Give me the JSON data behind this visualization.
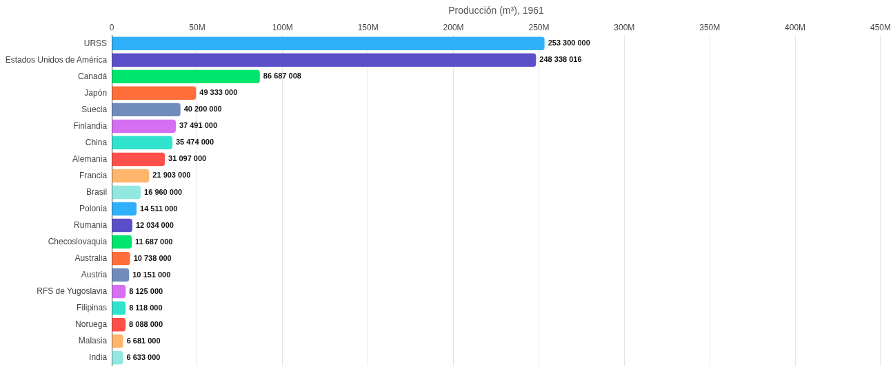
{
  "chart_data": {
    "type": "bar",
    "orientation": "horizontal",
    "xlabel": "Producción (m³), 1961",
    "categories": [
      "URSS",
      "Estados Unidos de América",
      "Canadá",
      "Japón",
      "Suecia",
      "Finlandia",
      "China",
      "Alemania",
      "Francia",
      "Brasil",
      "Polonia",
      "Rumania",
      "Checoslovaquia",
      "Australia",
      "Austria",
      "RFS de Yugoslavia",
      "Filipinas",
      "Noruega",
      "Malasia",
      "India"
    ],
    "values": [
      253300000,
      248338016,
      86687008,
      49333000,
      40200000,
      37491000,
      35474000,
      31097000,
      21903000,
      16960000,
      14511000,
      12034000,
      11687000,
      10738000,
      10151000,
      8125000,
      8118000,
      8088000,
      6681000,
      6633000
    ],
    "value_labels": [
      "253 300 000",
      "248 338 016",
      "86 687 008",
      "49 333 000",
      "40 200 000",
      "37 491 000",
      "35 474 000",
      "31 097 000",
      "21 903 000",
      "16 960 000",
      "14 511 000",
      "12 034 000",
      "11 687 000",
      "10 738 000",
      "10 151 000",
      "8 125 000",
      "8 118 000",
      "8 088 000",
      "6 681 000",
      "6 633 000"
    ],
    "colors": [
      "#2eb0fa",
      "#5a4fc9",
      "#00e56e",
      "#ff6e3a",
      "#6f8cbd",
      "#d66ff2",
      "#30e3cc",
      "#ff4f4a",
      "#ffb56b",
      "#92e8e0",
      "#2eb0fa",
      "#5a4fc9",
      "#00e56e",
      "#ff6e3a",
      "#6f8cbd",
      "#d66ff2",
      "#30e3cc",
      "#ff4f4a",
      "#ffb56b",
      "#92e8e0"
    ],
    "xlim": [
      0,
      450000000
    ],
    "xticks": [
      {
        "value": 0,
        "label": "0"
      },
      {
        "value": 50000000,
        "label": "50M"
      },
      {
        "value": 100000000,
        "label": "100M"
      },
      {
        "value": 150000000,
        "label": "150M"
      },
      {
        "value": 200000000,
        "label": "200M"
      },
      {
        "value": 250000000,
        "label": "250M"
      },
      {
        "value": 300000000,
        "label": "300M"
      },
      {
        "value": 350000000,
        "label": "350M"
      },
      {
        "value": 400000000,
        "label": "400M"
      },
      {
        "value": 450000000,
        "label": "450M"
      }
    ],
    "grid": "x",
    "legend": false
  }
}
